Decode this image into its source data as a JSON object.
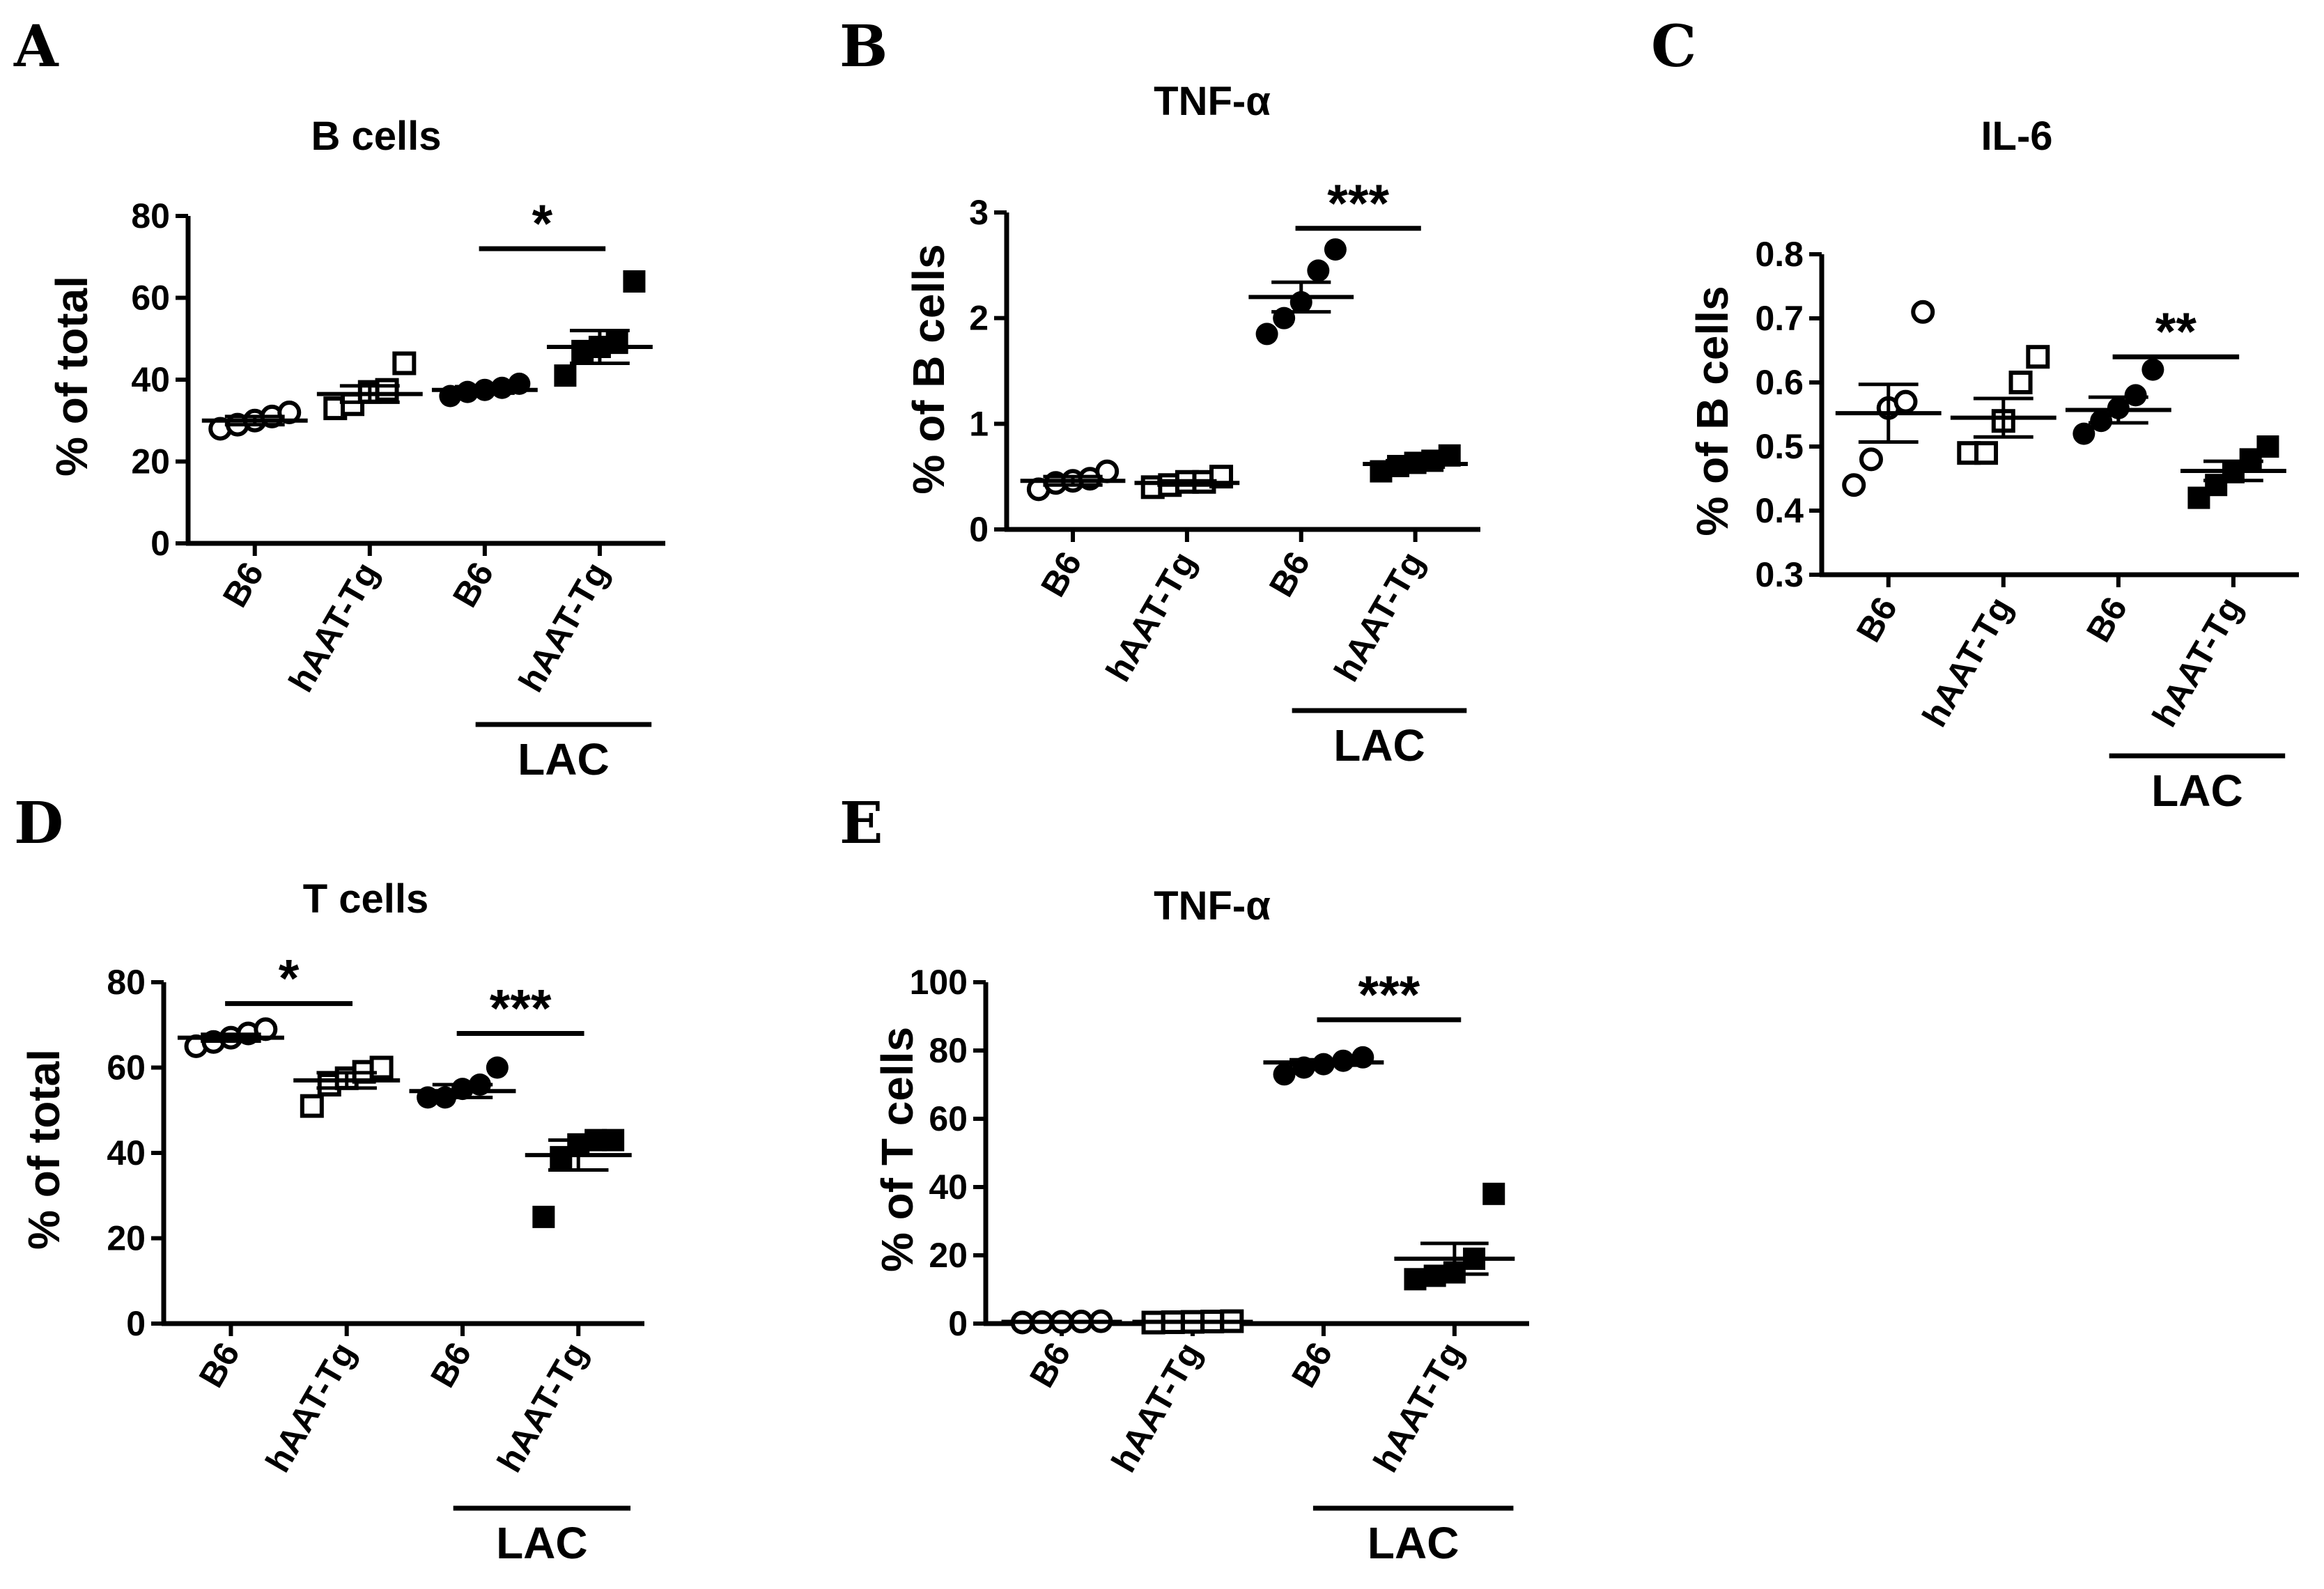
{
  "figure": {
    "categories": [
      "B6",
      "hAAT-Tg",
      "B6",
      "hAAT-Tg"
    ],
    "group_label": "LAC"
  },
  "chart_data": [
    {
      "panel": "A",
      "type": "scatter",
      "title": "B cells",
      "ylabel": "% of total",
      "ylim": [
        0,
        80
      ],
      "yticks": [
        0,
        20,
        40,
        60,
        80
      ],
      "series": [
        {
          "name": "B6",
          "marker": "circle",
          "filled": false,
          "mean": 30,
          "sem": 1,
          "values": [
            28,
            29,
            30,
            31,
            32
          ]
        },
        {
          "name": "hAAT-Tg",
          "marker": "square",
          "filled": false,
          "mean": 36.5,
          "sem": 2,
          "values": [
            33,
            34,
            37,
            37.5,
            44
          ]
        },
        {
          "name": "LAC B6",
          "marker": "circle",
          "filled": true,
          "mean": 37.5,
          "sem": 0.8,
          "values": [
            36,
            37,
            37.5,
            38,
            39
          ]
        },
        {
          "name": "LAC hAAT-Tg",
          "marker": "square",
          "filled": true,
          "mean": 48,
          "sem": 4,
          "values": [
            41,
            47,
            48,
            49,
            64
          ]
        }
      ],
      "significance": [
        {
          "from": 2,
          "to": 3,
          "label": "*",
          "y": 72
        }
      ]
    },
    {
      "panel": "B",
      "type": "scatter",
      "title": "TNF-α",
      "ylabel": "% of B cells",
      "ylim": [
        0,
        3
      ],
      "yticks": [
        0,
        1,
        2,
        3
      ],
      "series": [
        {
          "name": "B6",
          "marker": "circle",
          "filled": false,
          "mean": 0.46,
          "sem": 0.04,
          "values": [
            0.38,
            0.44,
            0.46,
            0.48,
            0.55
          ]
        },
        {
          "name": "hAAT-Tg",
          "marker": "square",
          "filled": false,
          "mean": 0.44,
          "sem": 0.02,
          "values": [
            0.4,
            0.42,
            0.45,
            0.45,
            0.5
          ]
        },
        {
          "name": "LAC B6",
          "marker": "circle",
          "filled": true,
          "mean": 2.2,
          "sem": 0.14,
          "values": [
            1.85,
            2.0,
            2.15,
            2.45,
            2.65
          ]
        },
        {
          "name": "LAC hAAT-Tg",
          "marker": "square",
          "filled": true,
          "mean": 0.62,
          "sem": 0.03,
          "values": [
            0.55,
            0.6,
            0.63,
            0.65,
            0.7
          ]
        }
      ],
      "significance": [
        {
          "from": 2,
          "to": 3,
          "label": "***",
          "y": 2.85
        }
      ]
    },
    {
      "panel": "C",
      "type": "scatter",
      "title": "IL-6",
      "ylabel": "% of B cells",
      "ylim": [
        0.3,
        0.8
      ],
      "yticks": [
        0.3,
        0.4,
        0.5,
        0.6,
        0.7,
        0.8
      ],
      "series": [
        {
          "name": "B6",
          "marker": "circle",
          "filled": false,
          "mean": 0.552,
          "sem": 0.045,
          "values": [
            0.44,
            0.48,
            0.56,
            0.57,
            0.71
          ]
        },
        {
          "name": "hAAT-Tg",
          "marker": "square",
          "filled": false,
          "mean": 0.545,
          "sem": 0.03,
          "values": [
            0.49,
            0.49,
            0.54,
            0.6,
            0.64
          ]
        },
        {
          "name": "LAC B6",
          "marker": "circle",
          "filled": true,
          "mean": 0.557,
          "sem": 0.02,
          "values": [
            0.52,
            0.54,
            0.56,
            0.58,
            0.62
          ]
        },
        {
          "name": "LAC hAAT-Tg",
          "marker": "square",
          "filled": true,
          "mean": 0.462,
          "sem": 0.015,
          "values": [
            0.42,
            0.44,
            0.46,
            0.48,
            0.5
          ]
        }
      ],
      "significance": [
        {
          "from": 2,
          "to": 3,
          "label": "**",
          "y": 0.64
        }
      ]
    },
    {
      "panel": "D",
      "type": "scatter",
      "title": "T cells",
      "ylabel": "% of total",
      "ylim": [
        0,
        80
      ],
      "yticks": [
        0,
        20,
        40,
        60,
        80
      ],
      "series": [
        {
          "name": "B6",
          "marker": "circle",
          "filled": false,
          "mean": 67,
          "sem": 0.8,
          "values": [
            65,
            66,
            67,
            68,
            69
          ]
        },
        {
          "name": "hAAT-Tg",
          "marker": "square",
          "filled": false,
          "mean": 57,
          "sem": 1.8,
          "values": [
            51,
            56,
            57.5,
            59,
            60
          ]
        },
        {
          "name": "LAC B6",
          "marker": "circle",
          "filled": true,
          "mean": 54.5,
          "sem": 1.5,
          "values": [
            53,
            53,
            55,
            56,
            60
          ]
        },
        {
          "name": "LAC hAAT-Tg",
          "marker": "square",
          "filled": true,
          "mean": 39.5,
          "sem": 3.5,
          "values": [
            25,
            39,
            42,
            43,
            43
          ]
        }
      ],
      "significance": [
        {
          "from": 0,
          "to": 1,
          "label": "*",
          "y": 75
        },
        {
          "from": 2,
          "to": 3,
          "label": "***",
          "y": 68
        }
      ]
    },
    {
      "panel": "E",
      "type": "scatter",
      "title": "TNF-α",
      "ylabel": "% of T cells",
      "ylim": [
        0,
        100
      ],
      "yticks": [
        0,
        20,
        40,
        60,
        80,
        100
      ],
      "series": [
        {
          "name": "B6",
          "marker": "circle",
          "filled": false,
          "mean": 0.5,
          "sem": 0.1,
          "values": [
            0.3,
            0.4,
            0.5,
            0.6,
            0.7
          ]
        },
        {
          "name": "hAAT-Tg",
          "marker": "square",
          "filled": false,
          "mean": 0.5,
          "sem": 0.1,
          "values": [
            0.3,
            0.4,
            0.5,
            0.6,
            0.7
          ]
        },
        {
          "name": "LAC B6",
          "marker": "circle",
          "filled": true,
          "mean": 76.5,
          "sem": 0.8,
          "values": [
            73,
            75,
            76,
            77,
            78
          ]
        },
        {
          "name": "LAC hAAT-Tg",
          "marker": "square",
          "filled": true,
          "mean": 19,
          "sem": 4.5,
          "values": [
            13,
            14,
            15,
            19,
            38
          ]
        }
      ],
      "significance": [
        {
          "from": 2,
          "to": 3,
          "label": "***",
          "y": 89
        }
      ]
    }
  ]
}
